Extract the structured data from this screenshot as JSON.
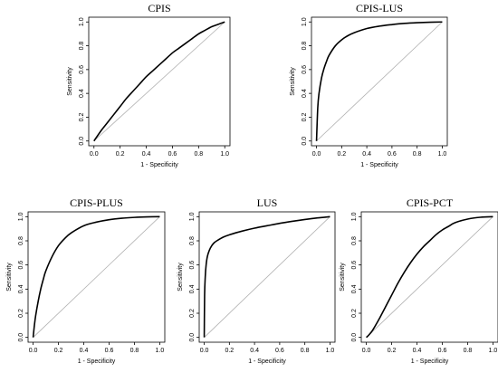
{
  "chart_data": [
    {
      "type": "line",
      "title": "CPIS",
      "xlabel": "1 - Specificity",
      "ylabel": "Sensitivity",
      "xlim": [
        0,
        1
      ],
      "ylim": [
        0,
        1
      ],
      "xticks": [
        "0.0",
        "0.2",
        "0.4",
        "0.6",
        "0.8",
        "1.0"
      ],
      "yticks": [
        "0.0",
        "0.2",
        "0.4",
        "0.6",
        "0.8",
        "1.0"
      ],
      "reference_line": "diagonal",
      "series": [
        {
          "x": [
            0,
            0.05,
            0.1,
            0.15,
            0.2,
            0.25,
            0.3,
            0.35,
            0.4,
            0.45,
            0.5,
            0.55,
            0.6,
            0.65,
            0.7,
            0.75,
            0.8,
            0.85,
            0.9,
            0.95,
            1.0
          ],
          "y": [
            0,
            0.08,
            0.15,
            0.22,
            0.29,
            0.36,
            0.42,
            0.48,
            0.54,
            0.59,
            0.64,
            0.69,
            0.74,
            0.78,
            0.82,
            0.86,
            0.9,
            0.93,
            0.96,
            0.98,
            1.0
          ]
        }
      ]
    },
    {
      "type": "line",
      "title": "CPIS-LUS",
      "xlabel": "1 - Specificity",
      "ylabel": "Sensitivity",
      "xlim": [
        0,
        1
      ],
      "ylim": [
        0,
        1
      ],
      "xticks": [
        "0.0",
        "0.2",
        "0.4",
        "0.6",
        "0.8",
        "1.0"
      ],
      "yticks": [
        "0.0",
        "0.2",
        "0.4",
        "0.6",
        "0.8",
        "1.0"
      ],
      "reference_line": "diagonal",
      "series": [
        {
          "x": [
            0,
            0.01,
            0.02,
            0.04,
            0.06,
            0.08,
            0.1,
            0.15,
            0.2,
            0.25,
            0.3,
            0.4,
            0.5,
            0.6,
            0.7,
            0.8,
            0.9,
            1.0
          ],
          "y": [
            0,
            0.28,
            0.4,
            0.53,
            0.61,
            0.67,
            0.72,
            0.8,
            0.85,
            0.885,
            0.91,
            0.945,
            0.965,
            0.978,
            0.988,
            0.994,
            0.998,
            1.0
          ]
        }
      ]
    },
    {
      "type": "line",
      "title": "CPIS-PLUS",
      "xlabel": "1 - Specificity",
      "ylabel": "Sensitivity",
      "xlim": [
        0,
        1
      ],
      "ylim": [
        0,
        1
      ],
      "xticks": [
        "0.0",
        "0.2",
        "0.4",
        "0.6",
        "0.8",
        "1.0"
      ],
      "yticks": [
        "0.0",
        "0.2",
        "0.4",
        "0.6",
        "0.8",
        "1.0"
      ],
      "reference_line": "diagonal",
      "series": [
        {
          "x": [
            0,
            0.01,
            0.02,
            0.04,
            0.06,
            0.08,
            0.1,
            0.15,
            0.2,
            0.25,
            0.3,
            0.4,
            0.5,
            0.6,
            0.7,
            0.8,
            0.9,
            1.0
          ],
          "y": [
            0,
            0.1,
            0.18,
            0.3,
            0.4,
            0.48,
            0.55,
            0.67,
            0.76,
            0.82,
            0.865,
            0.925,
            0.955,
            0.975,
            0.987,
            0.994,
            0.998,
            1.0
          ]
        }
      ]
    },
    {
      "type": "line",
      "title": "LUS",
      "xlabel": "1 - Specificity",
      "ylabel": "Sensitivity",
      "xlim": [
        0,
        1
      ],
      "ylim": [
        0,
        1
      ],
      "xticks": [
        "0.0",
        "0.2",
        "0.4",
        "0.6",
        "0.8",
        "1.0"
      ],
      "yticks": [
        "0.0",
        "0.2",
        "0.4",
        "0.6",
        "0.8",
        "1.0"
      ],
      "reference_line": "diagonal",
      "series": [
        {
          "x": [
            0,
            0.003,
            0.008,
            0.015,
            0.025,
            0.04,
            0.06,
            0.08,
            0.1,
            0.15,
            0.2,
            0.3,
            0.4,
            0.5,
            0.6,
            0.7,
            0.8,
            0.9,
            1.0
          ],
          "y": [
            0,
            0.35,
            0.5,
            0.6,
            0.67,
            0.72,
            0.76,
            0.785,
            0.8,
            0.83,
            0.85,
            0.88,
            0.905,
            0.925,
            0.945,
            0.962,
            0.977,
            0.99,
            1.0
          ]
        }
      ]
    },
    {
      "type": "line",
      "title": "CPIS-PCT",
      "xlabel": "1 - Specificity",
      "ylabel": "Sensitivity",
      "xlim": [
        0,
        1
      ],
      "ylim": [
        0,
        1
      ],
      "xticks": [
        "0.0",
        "0.2",
        "0.4",
        "0.6",
        "0.8",
        "1.0"
      ],
      "yticks": [
        "0.0",
        "0.2",
        "0.4",
        "0.6",
        "0.8",
        "1.0"
      ],
      "reference_line": "diagonal",
      "series": [
        {
          "x": [
            0,
            0.02,
            0.05,
            0.1,
            0.15,
            0.2,
            0.25,
            0.3,
            0.35,
            0.4,
            0.45,
            0.5,
            0.55,
            0.6,
            0.65,
            0.7,
            0.8,
            0.9,
            1.0
          ],
          "y": [
            0,
            0.02,
            0.06,
            0.15,
            0.25,
            0.35,
            0.45,
            0.54,
            0.62,
            0.69,
            0.75,
            0.8,
            0.85,
            0.89,
            0.92,
            0.95,
            0.98,
            0.995,
            1.0
          ]
        }
      ]
    }
  ]
}
